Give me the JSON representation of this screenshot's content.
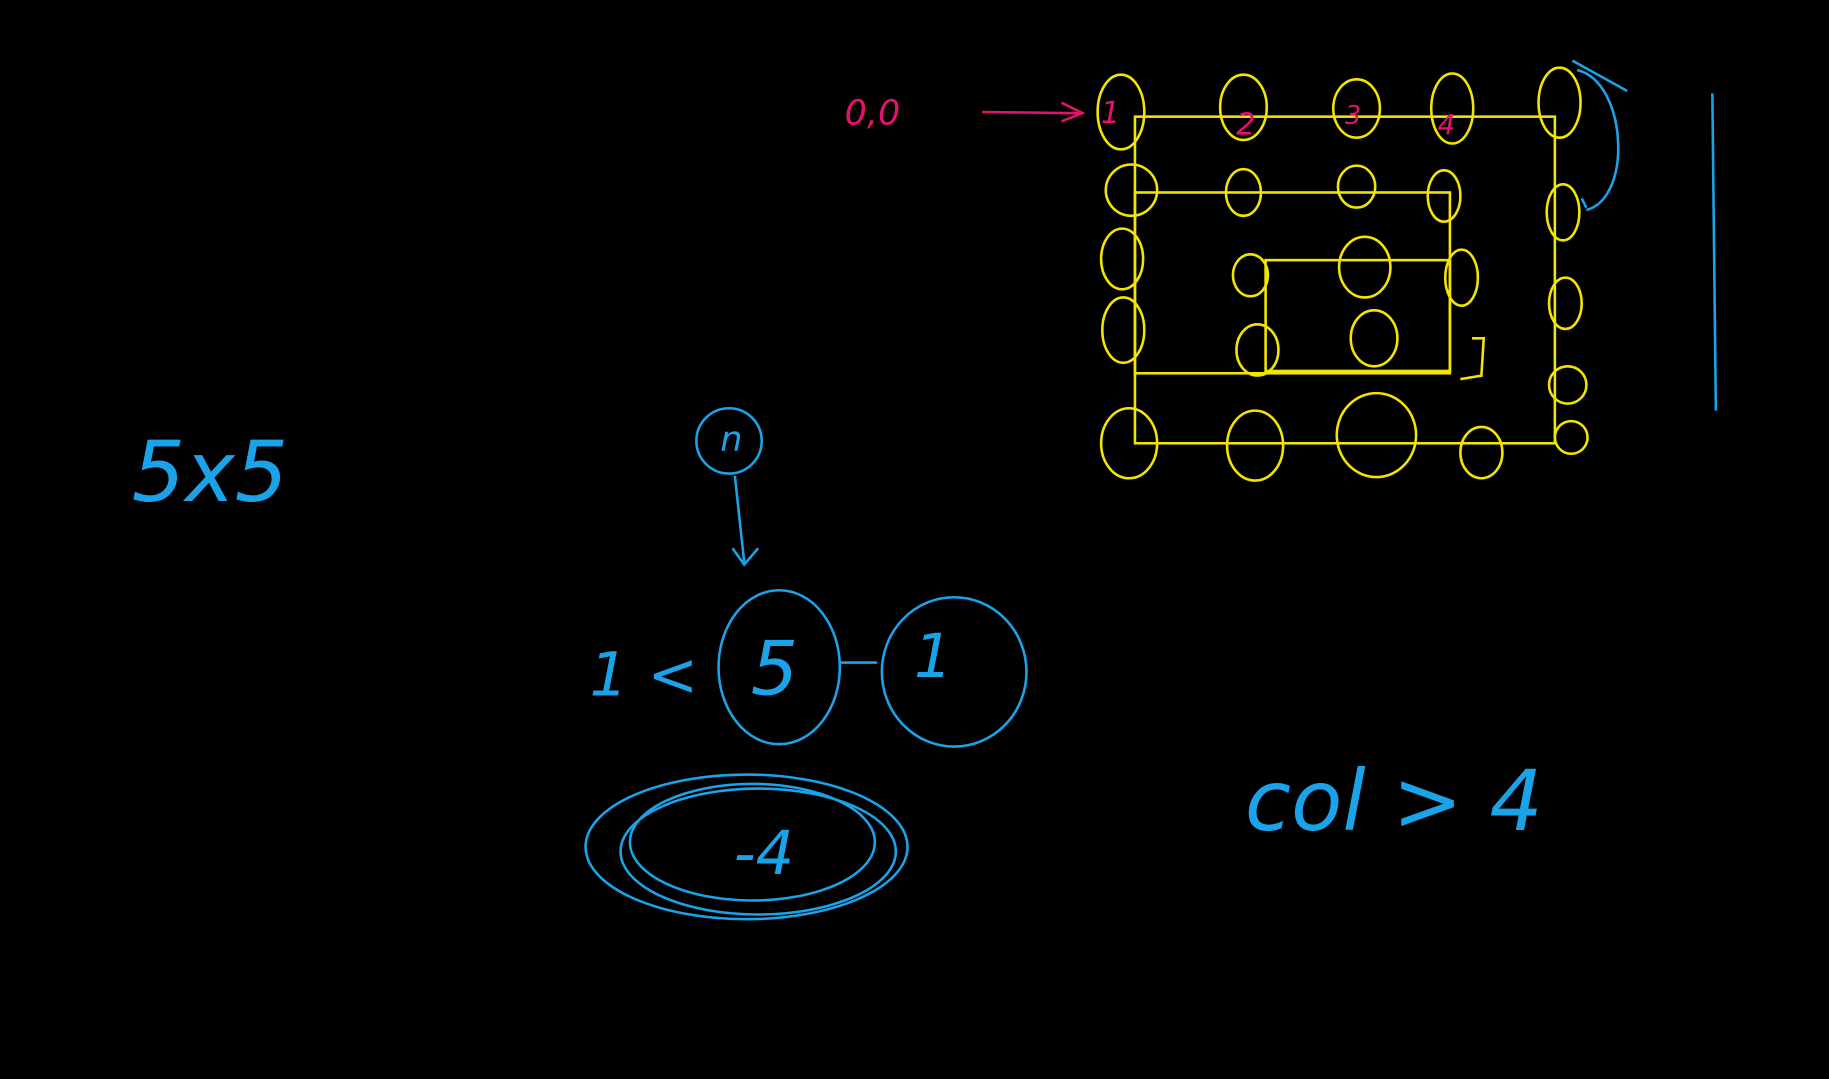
{
  "labels": {
    "origin": "0,0",
    "top_row": [
      "1",
      "2",
      "3",
      "4"
    ],
    "size": "5x5",
    "node": "n",
    "left": "1 <",
    "center": "5",
    "right": "1",
    "result": "-4",
    "condition": "col > 4"
  }
}
